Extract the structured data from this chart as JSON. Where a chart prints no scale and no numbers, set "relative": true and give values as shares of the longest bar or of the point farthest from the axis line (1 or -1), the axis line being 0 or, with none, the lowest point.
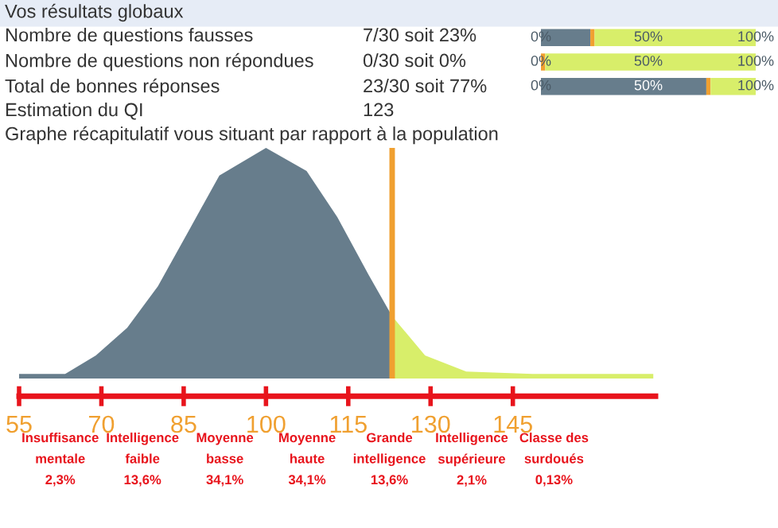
{
  "chart_data": [
    {
      "type": "bar",
      "orientation": "horizontal",
      "stacked": true,
      "categories": [
        null,
        null,
        null
      ],
      "series": [
        {
          "color": "#677d8c",
          "values": [
            0.23,
            0,
            0.77
          ]
        },
        {
          "color": "#f0a030",
          "values": [
            0.02,
            0.02,
            0.02
          ]
        },
        {
          "color": "#d8ee6a",
          "values": [
            0.75,
            0.98,
            0.21
          ]
        }
      ],
      "xlim": [
        0,
        1
      ],
      "xticks": [
        {
          "value": 0,
          "label": "0%"
        },
        {
          "value": 0.5,
          "label": "50%"
        },
        {
          "value": 1,
          "label": "100%"
        }
      ],
      "annotations": [
        "Vos résultats globaux",
        "Nombre de questions fausses",
        "7/30 soit 23%",
        "Nombre de questions non répondues",
        "0/30 soit 0%",
        "Total de bonnes réponses",
        "23/30 soit 77%",
        "Estimation du QI",
        "123"
      ]
    },
    {
      "type": "area",
      "relative": true,
      "title": "Graphe récapitulatif vous situant par rapport à la population",
      "series": [
        {
          "color": "#677d8c",
          "x": [
            55,
            63.4,
            69,
            74.7,
            80.3,
            85.9,
            91.5,
            100,
            107.4,
            113,
            118.7,
            123
          ],
          "values": [
            0.02,
            0.02,
            0.1,
            0.22,
            0.4,
            0.64,
            0.88,
            1,
            0.9,
            0.7,
            0.45,
            0.27
          ]
        },
        {
          "color": "#d8ee6a",
          "x": [
            123,
            129,
            136.5,
            148.6,
            170.6
          ],
          "values": [
            0.27,
            0.1,
            0.03,
            0.02,
            0.02
          ]
        }
      ],
      "xlim": [
        55,
        171
      ],
      "xticks": [
        55,
        70,
        85,
        100,
        115,
        130,
        145
      ],
      "ref_lines": [
        {
          "axis": "x",
          "value": 123,
          "color": "#f0a030"
        }
      ],
      "annotations": [
        "Insuffisance\nmentale\n2,3%",
        "Intelligence\nfaible\n13,6%",
        "Moyenne\nbasse\n34,1%",
        "Moyenne\nhaute\n34,1%",
        "Grande\nintelligence\n13,6%",
        "Intelligence\nsupérieure\n2,1%",
        "Classe des\nsurdoués\n0,13%"
      ]
    }
  ]
}
